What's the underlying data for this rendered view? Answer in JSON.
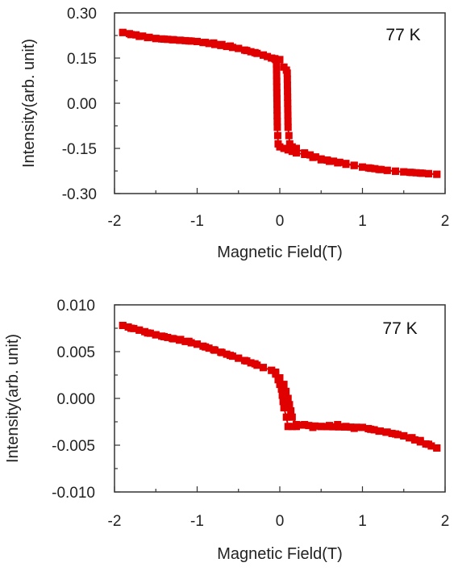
{
  "chart_data": [
    {
      "type": "scatter",
      "xlabel": "Magnetic Field(T)",
      "ylabel": "Intensity(arb. unit)",
      "xlim": [
        -2,
        2
      ],
      "ylim": [
        -0.3,
        0.3
      ],
      "xticks": [
        "-2",
        "-1",
        "0",
        "1",
        "2"
      ],
      "yticks": [
        "0.30",
        "0.15",
        "0.00",
        "-0.15",
        "-0.30"
      ],
      "annotation": "77 K",
      "color": "#e00000",
      "series": [
        {
          "x": [
            -1.9,
            -1.8,
            -1.7,
            -1.6,
            -1.5,
            -1.4,
            -1.3,
            -1.2,
            -1.1,
            -1.0,
            -0.9,
            -0.8,
            -0.7,
            -0.6,
            -0.5,
            -0.4,
            -0.3,
            -0.2,
            -0.15,
            -0.1,
            -0.06,
            -0.05,
            -0.04,
            -0.03,
            -0.02,
            0.0,
            0.05,
            0.1,
            0.15,
            0.2,
            0.3,
            0.4,
            0.5,
            0.6,
            0.7,
            0.8,
            0.9,
            1.0,
            1.1,
            1.2,
            1.3,
            1.4,
            1.5,
            1.6,
            1.7,
            1.8,
            1.9
          ],
          "values": [
            0.235,
            0.228,
            0.222,
            0.218,
            0.215,
            0.213,
            0.211,
            0.209,
            0.207,
            0.205,
            0.202,
            0.2,
            0.195,
            0.19,
            0.182,
            0.175,
            0.168,
            0.16,
            0.155,
            0.15,
            0.148,
            0.145,
            0.13,
            -0.08,
            -0.135,
            -0.145,
            -0.15,
            -0.155,
            -0.16,
            -0.165,
            -0.17,
            -0.18,
            -0.188,
            -0.193,
            -0.198,
            -0.203,
            -0.207,
            -0.212,
            -0.216,
            -0.22,
            -0.223,
            -0.226,
            -0.228,
            -0.23,
            -0.232,
            -0.234,
            -0.236
          ]
        },
        {
          "x": [
            -1.9,
            -1.5,
            -1.0,
            -0.5,
            -0.2,
            -0.1,
            0.0,
            0.05,
            0.08,
            0.09,
            0.1,
            0.12,
            0.15,
            0.2,
            0.3,
            0.5,
            0.8,
            1.0,
            1.3,
            1.5,
            1.8,
            1.9
          ],
          "values": [
            0.235,
            0.215,
            0.205,
            0.182,
            0.16,
            0.15,
            0.145,
            0.12,
            0.11,
            0.1,
            -0.08,
            -0.135,
            -0.145,
            -0.15,
            -0.165,
            -0.185,
            -0.2,
            -0.212,
            -0.223,
            -0.228,
            -0.234,
            -0.236
          ]
        }
      ]
    },
    {
      "type": "scatter",
      "xlabel": "Magnetic Field(T)",
      "ylabel": "Intensity(arb. unit)",
      "xlim": [
        -2,
        2
      ],
      "ylim": [
        -0.01,
        0.01
      ],
      "xticks": [
        "-2",
        "-1",
        "0",
        "1",
        "2"
      ],
      "yticks": [
        "0.010",
        "0.005",
        "0.000",
        "-0.005",
        "-0.010"
      ],
      "annotation": "77 K",
      "color": "#e00000",
      "series": [
        {
          "x": [
            -1.9,
            -1.8,
            -1.7,
            -1.6,
            -1.5,
            -1.4,
            -1.3,
            -1.2,
            -1.1,
            -1.0,
            -0.9,
            -0.8,
            -0.7,
            -0.6,
            -0.5,
            -0.4,
            -0.3,
            -0.2,
            -0.1,
            -0.05,
            -0.02,
            0.0,
            0.02,
            0.05,
            0.08,
            0.1,
            0.15,
            0.2,
            0.3,
            0.4,
            0.5,
            0.6,
            0.7,
            0.8,
            0.9,
            1.0,
            1.1,
            1.2,
            1.3,
            1.4,
            1.5,
            1.6,
            1.7,
            1.8,
            1.9
          ],
          "values": [
            0.0078,
            0.0075,
            0.0073,
            0.007,
            0.0068,
            0.0066,
            0.0064,
            0.0063,
            0.0061,
            0.0058,
            0.0055,
            0.0052,
            0.0049,
            0.0046,
            0.0043,
            0.004,
            0.0037,
            0.0033,
            0.003,
            0.0028,
            0.002,
            0.0015,
            0.001,
            -0.001,
            -0.002,
            -0.003,
            -0.003,
            -0.003,
            -0.0028,
            -0.0031,
            -0.003,
            -0.0029,
            -0.0028,
            -0.003,
            -0.0032,
            -0.0031,
            -0.0033,
            -0.0035,
            -0.0036,
            -0.0038,
            -0.004,
            -0.0042,
            -0.0045,
            -0.0049,
            -0.0053
          ]
        },
        {
          "x": [
            -1.9,
            -1.5,
            -1.0,
            -0.5,
            -0.2,
            -0.1,
            -0.05,
            0.0,
            0.05,
            0.1,
            0.15,
            0.2,
            0.5,
            1.0,
            1.5,
            1.9
          ],
          "values": [
            0.0078,
            0.0068,
            0.0058,
            0.0043,
            0.0033,
            0.003,
            0.0026,
            0.0022,
            0.0015,
            0.0,
            -0.002,
            -0.0028,
            -0.003,
            -0.0031,
            -0.004,
            -0.0053
          ]
        }
      ]
    }
  ]
}
